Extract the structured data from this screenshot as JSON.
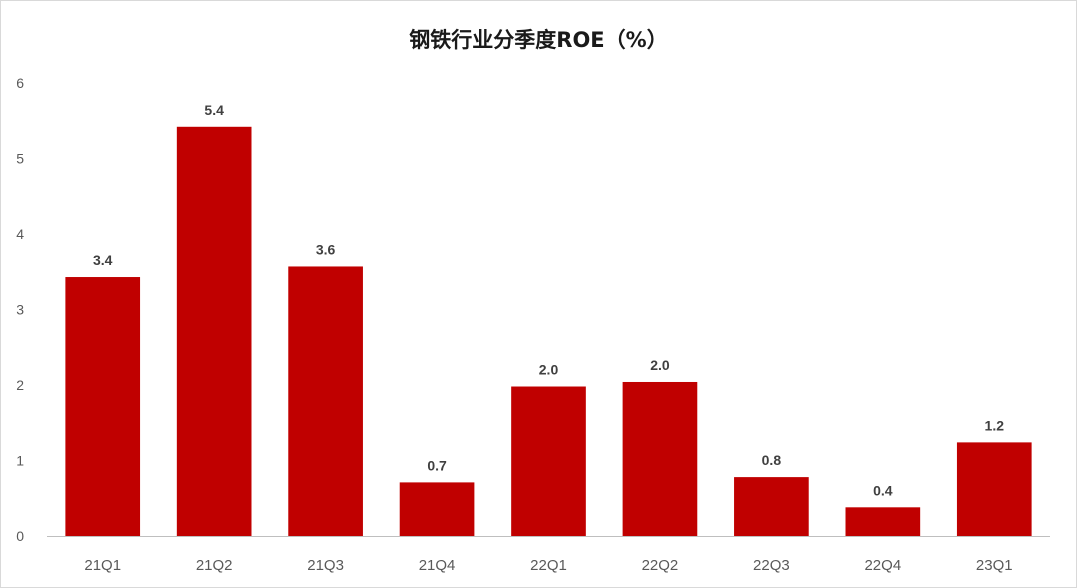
{
  "chart_data": {
    "type": "bar",
    "title": "钢铁行业分季度ROE（%）",
    "xlabel": "",
    "ylabel": "",
    "categories": [
      "21Q1",
      "21Q2",
      "21Q3",
      "21Q4",
      "22Q1",
      "22Q2",
      "22Q3",
      "22Q4",
      "23Q1"
    ],
    "values": [
      3.43,
      5.42,
      3.57,
      0.71,
      1.98,
      2.04,
      0.78,
      0.38,
      1.24
    ],
    "data_labels": [
      "3.4",
      "5.4",
      "3.6",
      "0.7",
      "2.0",
      "2.0",
      "0.8",
      "0.4",
      "1.2"
    ],
    "ylim": [
      0,
      6
    ],
    "yticks": [
      0,
      1,
      2,
      3,
      4,
      5,
      6
    ],
    "grid": false,
    "legend": "none",
    "bar_color": "#c00000"
  }
}
